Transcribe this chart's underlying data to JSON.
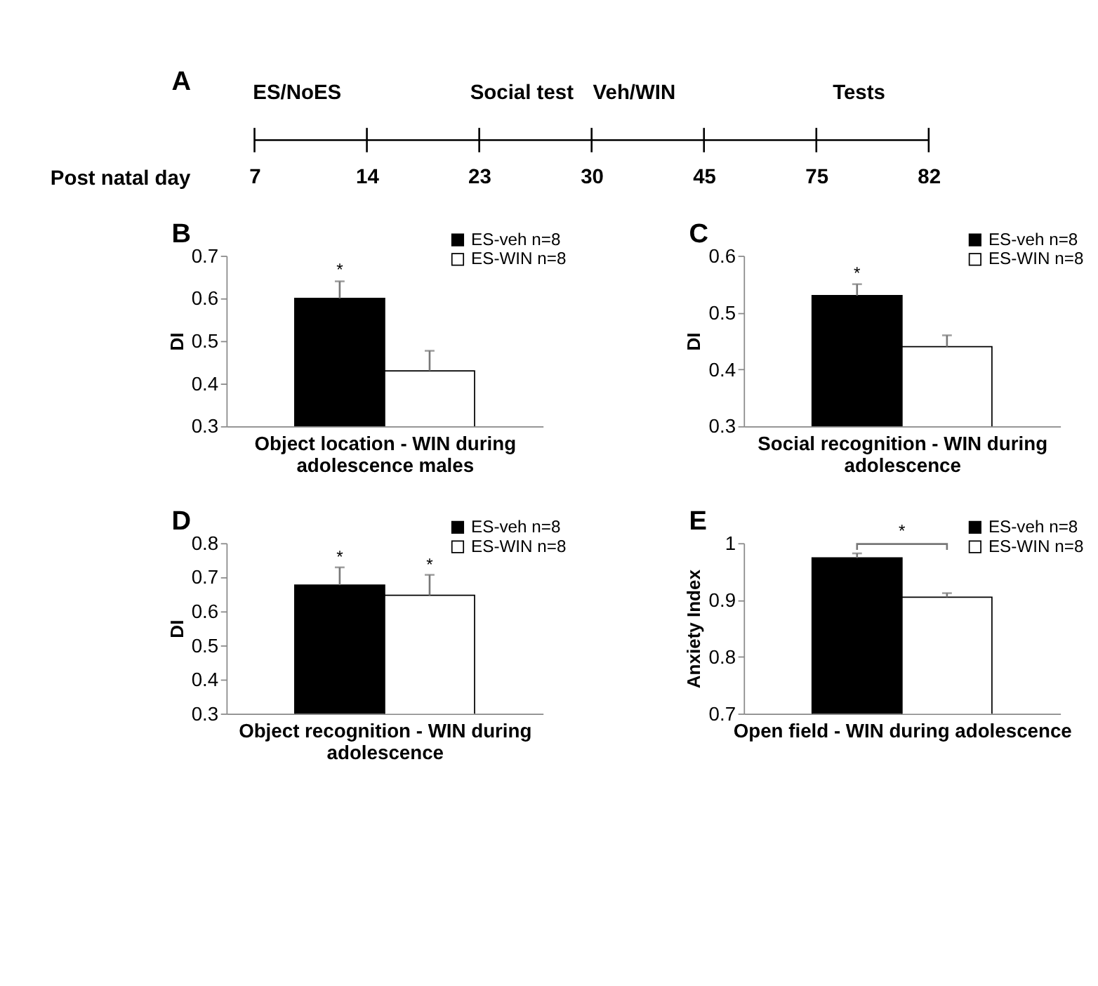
{
  "chart_data": [
    {
      "type": "other",
      "title": "A",
      "categories": [
        "7",
        "14",
        "23",
        "30",
        "45",
        "75",
        "82"
      ],
      "xlabel": "Post natal day",
      "annotations": [
        {
          "text": "ES/NoES",
          "x": "7"
        },
        {
          "text": "Social test",
          "x": "23"
        },
        {
          "text": "Veh/WIN",
          "x": "30"
        },
        {
          "text": "Tests",
          "x": "75"
        }
      ]
    },
    {
      "type": "bar",
      "title": "B",
      "categories": [
        null
      ],
      "xlabel": "Object location - WIN during adolescence males",
      "ylabel": "DI",
      "ylim": [
        0.3,
        0.7
      ],
      "yticks": [
        0.3,
        0.4,
        0.5,
        0.6,
        0.7
      ],
      "legend": "top right",
      "tick_labels": "y",
      "series": [
        {
          "name": "ES-veh n=8",
          "color": "#000000",
          "values": [
            0.6
          ],
          "errors": [
            0.04
          ]
        },
        {
          "name": "ES-WIN n=8",
          "color": "#ffffff",
          "values": [
            0.43
          ],
          "errors": [
            0.047
          ]
        }
      ],
      "annotations": [
        {
          "text": "*",
          "y": 0.645
        }
      ]
    },
    {
      "type": "bar",
      "title": "C",
      "categories": [
        null
      ],
      "xlabel": "Social recognition - WIN during adolescence",
      "ylabel": "DI",
      "ylim": [
        0.3,
        0.6
      ],
      "yticks": [
        0.3,
        0.4,
        0.5,
        0.6
      ],
      "legend": "top right",
      "tick_labels": "y",
      "series": [
        {
          "name": "ES-veh n=8",
          "color": "#000000",
          "values": [
            0.53
          ],
          "errors": [
            0.02
          ]
        },
        {
          "name": "ES-WIN n=8",
          "color": "#ffffff",
          "values": [
            0.44
          ],
          "errors": [
            0.02
          ]
        }
      ],
      "annotations": [
        {
          "text": "*",
          "y": 0.553
        }
      ]
    },
    {
      "type": "bar",
      "title": "D",
      "categories": [
        null
      ],
      "xlabel": "Object recognition - WIN during adolescence",
      "ylabel": "DI",
      "ylim": [
        0.3,
        0.8
      ],
      "yticks": [
        0.3,
        0.4,
        0.5,
        0.6,
        0.7,
        0.8
      ],
      "legend": "top right",
      "tick_labels": "y",
      "series": [
        {
          "name": "ES-veh n=8",
          "color": "#000000",
          "values": [
            0.677
          ],
          "errors": [
            0.052
          ]
        },
        {
          "name": "ES-WIN n=8",
          "color": "#ffffff",
          "values": [
            0.647
          ],
          "errors": [
            0.06
          ]
        }
      ],
      "annotations": [
        {
          "text": "*",
          "y": 0.733
        },
        {
          "text": "*",
          "y": 0.71
        }
      ]
    },
    {
      "type": "bar",
      "title": "E",
      "categories": [
        null
      ],
      "xlabel": "Open field - WIN during adolescence",
      "ylabel": "Anxiety Index",
      "ylim": [
        0.7,
        1.0
      ],
      "yticks": [
        0.7,
        0.8,
        0.9,
        1
      ],
      "legend": "top right",
      "tick_labels": "y",
      "series": [
        {
          "name": "ES-veh n=8",
          "color": "#000000",
          "values": [
            0.974
          ],
          "errors": [
            0.008
          ]
        },
        {
          "name": "ES-WIN n=8",
          "color": "#ffffff",
          "values": [
            0.905
          ],
          "errors": [
            0.007
          ]
        }
      ],
      "annotations": [
        "*"
      ]
    }
  ]
}
